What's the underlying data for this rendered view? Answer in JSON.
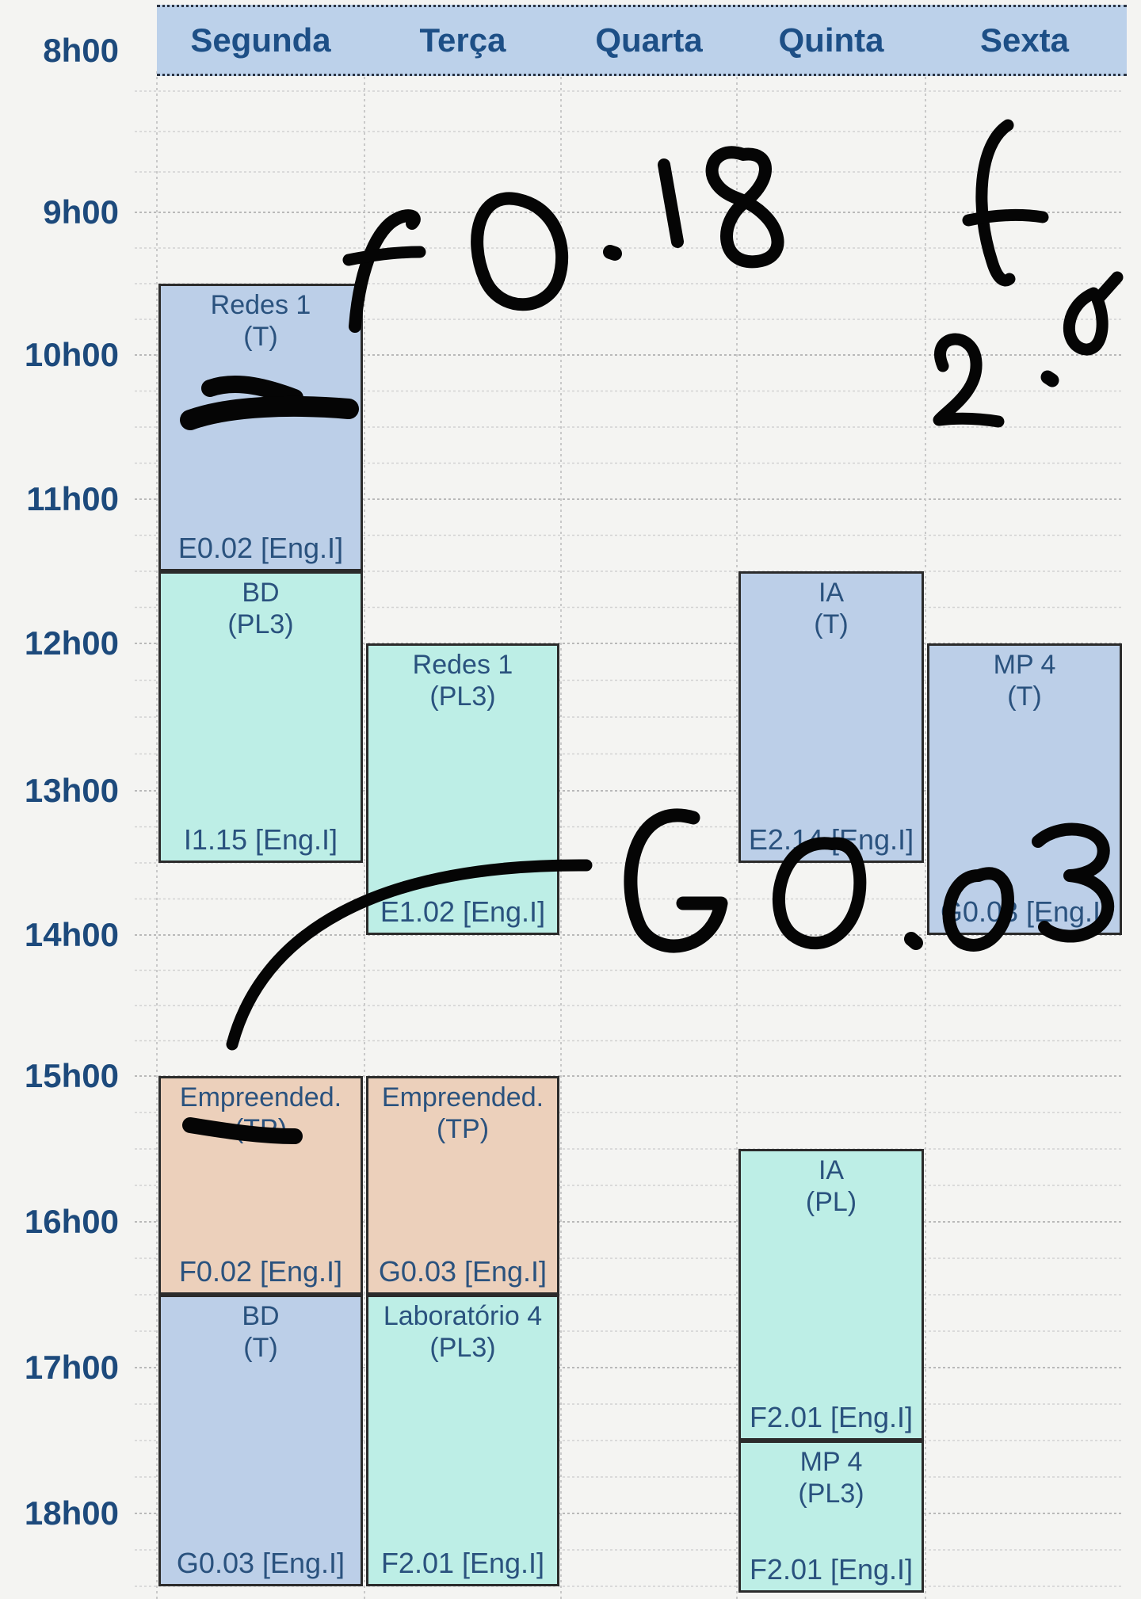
{
  "days": [
    "Segunda",
    "Terça",
    "Quarta",
    "Quinta",
    "Sexta"
  ],
  "times": [
    "8h00",
    "9h00",
    "10h00",
    "11h00",
    "12h00",
    "13h00",
    "14h00",
    "15h00",
    "16h00",
    "17h00",
    "18h00"
  ],
  "classes": [
    {
      "day": "Segunda",
      "name": "Redes 1",
      "type": "(T)",
      "room": "E0.02 [Eng.I]",
      "start": "9h30",
      "end": "11h30",
      "kind": "T"
    },
    {
      "day": "Segunda",
      "name": "BD",
      "type": "(PL3)",
      "room": "I1.15 [Eng.I]",
      "start": "11h30",
      "end": "13h30",
      "kind": "PL"
    },
    {
      "day": "Segunda",
      "name": "Empreended.",
      "type": "(TP)",
      "room": "F0.02 [Eng.I]",
      "start": "15h00",
      "end": "16h30",
      "kind": "TP"
    },
    {
      "day": "Segunda",
      "name": "BD",
      "type": "(T)",
      "room": "G0.03 [Eng.I]",
      "start": "16h30",
      "end": "18h30",
      "kind": "T"
    },
    {
      "day": "Terça",
      "name": "Redes 1",
      "type": "(PL3)",
      "room": "E1.02 [Eng.I]",
      "start": "12h00",
      "end": "14h00",
      "kind": "PL"
    },
    {
      "day": "Terça",
      "name": "Empreended.",
      "type": "(TP)",
      "room": "G0.03 [Eng.I]",
      "start": "15h00",
      "end": "16h30",
      "kind": "TP"
    },
    {
      "day": "Terça",
      "name": "Laboratório 4",
      "type": "(PL3)",
      "room": "F2.01 [Eng.I]",
      "start": "16h30",
      "end": "18h30",
      "kind": "PL"
    },
    {
      "day": "Quinta",
      "name": "IA",
      "type": "(T)",
      "room": "E2.14 [Eng.I]",
      "start": "11h30",
      "end": "13h30",
      "kind": "T"
    },
    {
      "day": "Quinta",
      "name": "IA",
      "type": "(PL)",
      "room": "F2.01 [Eng.I]",
      "start": "15h30",
      "end": "17h30",
      "kind": "PL"
    },
    {
      "day": "Quinta",
      "name": "MP 4",
      "type": "(PL3)",
      "room": "F2.01 [Eng.I]",
      "start": "17h30",
      "end": "19h30",
      "kind": "PL"
    },
    {
      "day": "Sexta",
      "name": "MP 4",
      "type": "(T)",
      "room": "G0.03 [Eng.I]",
      "start": "12h00",
      "end": "14h00",
      "kind": "T"
    }
  ],
  "handwriting": [
    "F0.18",
    "F2.2",
    "G0.03"
  ],
  "colors": {
    "header_bg": "#bcd1ea",
    "day_text": "#1d4f86",
    "time_text": "#1d4a7c",
    "theory_bg": "#bccfe8",
    "lab_bg": "#bdeee6",
    "tp_bg": "#ecd0bb",
    "ink": "#050505"
  }
}
